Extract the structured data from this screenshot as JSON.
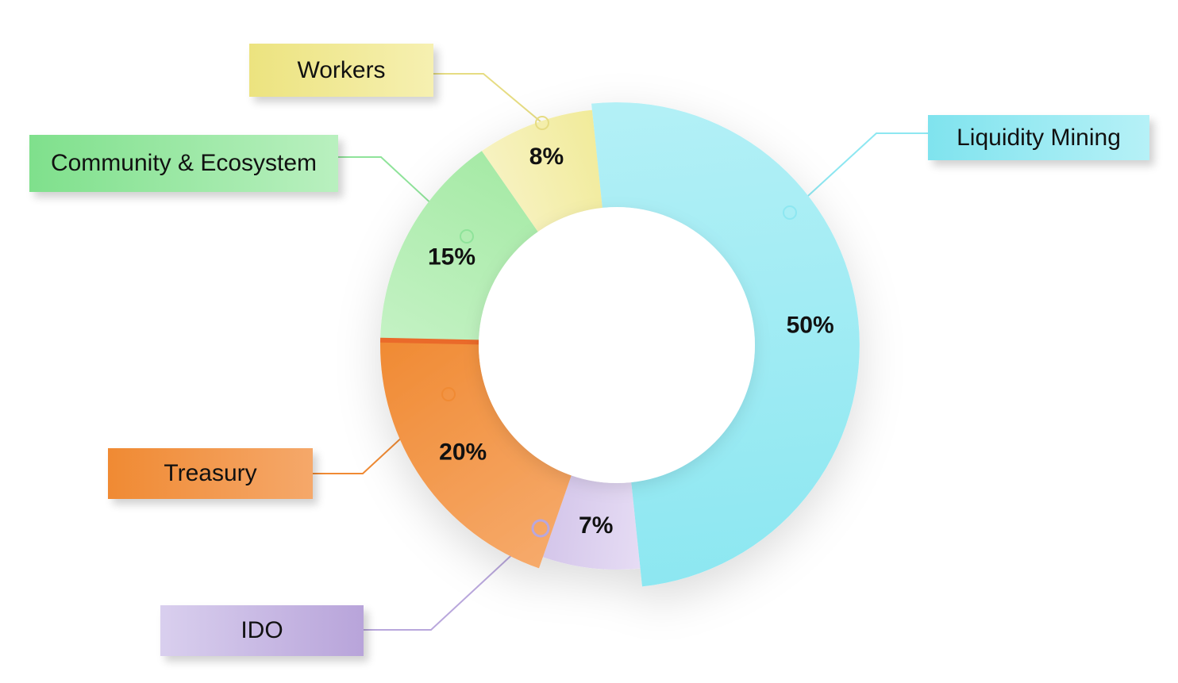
{
  "chart_data": {
    "type": "pie",
    "donut": true,
    "categories": [
      "Liquidity Mining",
      "IDO",
      "Treasury",
      "Community & Ecosystem",
      "Workers"
    ],
    "values": [
      50,
      7,
      20,
      15,
      8
    ],
    "value_labels": [
      "50%",
      "7%",
      "20%",
      "15%",
      "8%"
    ],
    "colors": [
      "#8de7f1",
      "#d4c6ea",
      "#f08a33",
      "#a6eaa6",
      "#f1eb9a"
    ]
  }
}
